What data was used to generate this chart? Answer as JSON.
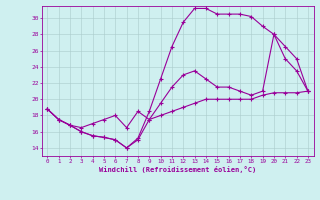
{
  "title": "",
  "xlabel": "Windchill (Refroidissement éolien,°C)",
  "bg_color": "#cff0f0",
  "line_color": "#990099",
  "grid_color": "#aacccc",
  "xlim": [
    -0.5,
    23.5
  ],
  "ylim": [
    13.0,
    31.5
  ],
  "xticks": [
    0,
    1,
    2,
    3,
    4,
    5,
    6,
    7,
    8,
    9,
    10,
    11,
    12,
    13,
    14,
    15,
    16,
    17,
    18,
    19,
    20,
    21,
    22,
    23
  ],
  "yticks": [
    14,
    16,
    18,
    20,
    22,
    24,
    26,
    28,
    30
  ],
  "line1_x": [
    0,
    1,
    2,
    3,
    4,
    5,
    6,
    7,
    8,
    9,
    10,
    11,
    12,
    13,
    14,
    15,
    16,
    17,
    18,
    19,
    20,
    21,
    22,
    23
  ],
  "line1_y": [
    18.8,
    17.5,
    16.8,
    16.0,
    15.5,
    15.3,
    15.0,
    14.0,
    15.2,
    18.5,
    22.5,
    26.5,
    29.5,
    31.2,
    31.2,
    30.5,
    30.5,
    30.5,
    30.2,
    29.0,
    28.0,
    25.0,
    23.5,
    21.0
  ],
  "line2_x": [
    0,
    1,
    2,
    3,
    4,
    5,
    6,
    7,
    8,
    9,
    10,
    11,
    12,
    13,
    14,
    15,
    16,
    17,
    18,
    19,
    20,
    21,
    22,
    23
  ],
  "line2_y": [
    18.8,
    17.5,
    16.8,
    16.0,
    15.5,
    15.3,
    15.0,
    14.0,
    15.0,
    17.5,
    19.5,
    21.5,
    23.0,
    23.5,
    22.5,
    21.5,
    21.5,
    21.0,
    20.5,
    21.0,
    28.0,
    26.5,
    25.0,
    21.0
  ],
  "line3_x": [
    0,
    1,
    2,
    3,
    4,
    5,
    6,
    7,
    8,
    9,
    10,
    11,
    12,
    13,
    14,
    15,
    16,
    17,
    18,
    19,
    20,
    21,
    22,
    23
  ],
  "line3_y": [
    18.8,
    17.5,
    16.8,
    16.5,
    17.0,
    17.5,
    18.0,
    16.5,
    18.5,
    17.5,
    18.0,
    18.5,
    19.0,
    19.5,
    20.0,
    20.0,
    20.0,
    20.0,
    20.0,
    20.5,
    20.8,
    20.8,
    20.8,
    21.0
  ]
}
